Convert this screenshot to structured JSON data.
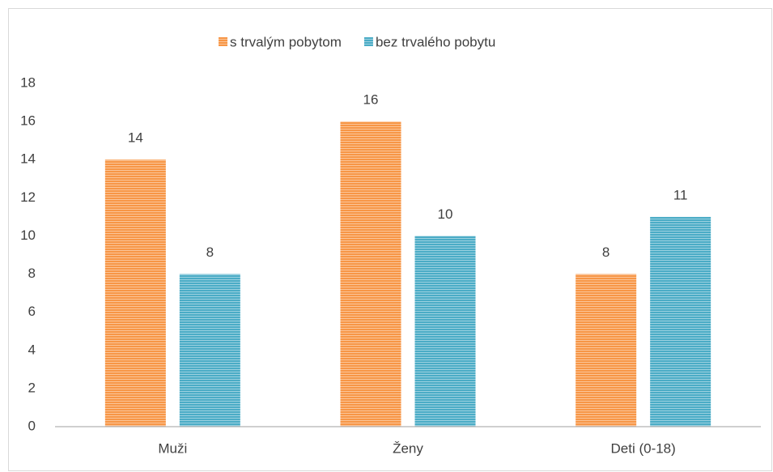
{
  "chart_data": {
    "type": "bar",
    "categories": [
      "Muži",
      "Ženy",
      "Deti (0-18)"
    ],
    "series": [
      {
        "name": "s trvalým pobytom",
        "color": "#f79646",
        "values": [
          14,
          16,
          8
        ]
      },
      {
        "name": "bez trvalého pobytu",
        "color": "#4bacc6",
        "values": [
          8,
          10,
          11
        ]
      }
    ],
    "ylim": [
      0,
      18
    ],
    "yticks": [
      0,
      2,
      4,
      6,
      8,
      10,
      12,
      14,
      16,
      18
    ],
    "grid": false,
    "legend": "top",
    "data_labels": true
  }
}
